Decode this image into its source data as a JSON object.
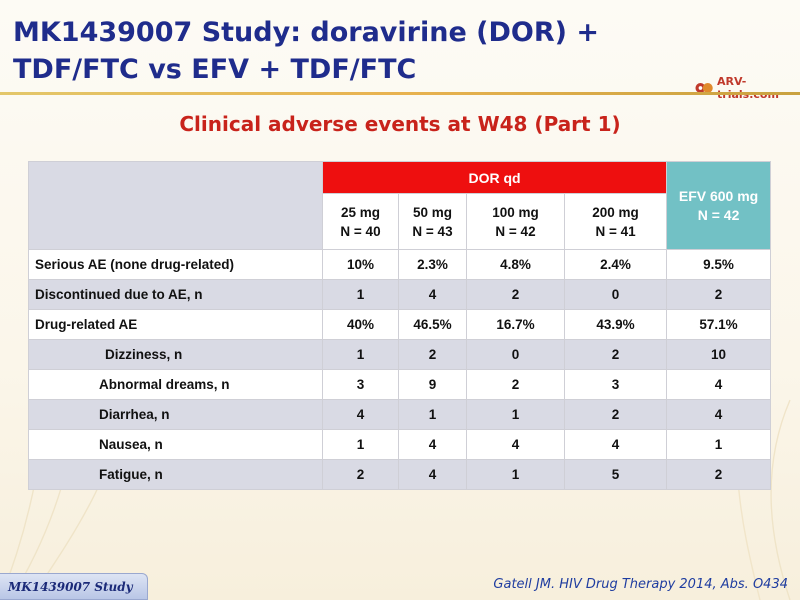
{
  "slide": {
    "title": "MK1439007 Study: doravirine (DOR) + TDF/FTC vs EFV + TDF/FTC",
    "logo_text": "ARV-trials.com",
    "subtitle": "Clinical adverse events at W48 (Part 1)",
    "footer_tab": "MK1439007 Study",
    "citation": "Gatell JM.  HIV Drug Therapy 2014, Abs. O434"
  },
  "table": {
    "group_header": "DOR qd",
    "efv_header": [
      "EFV 600 mg",
      "N = 42"
    ],
    "dose_headers": [
      [
        "25 mg",
        "N = 40"
      ],
      [
        "50 mg",
        "N = 43"
      ],
      [
        "100 mg",
        "N = 42"
      ],
      [
        "200 mg",
        "N = 41"
      ]
    ],
    "rows": [
      {
        "label": "Serious AE (none drug-related)",
        "values": [
          "10%",
          "2.3%",
          "4.8%",
          "2.4%",
          "9.5%"
        ]
      },
      {
        "label": "Discontinued due to AE, n",
        "values": [
          "1",
          "4",
          "2",
          "0",
          "2"
        ]
      },
      {
        "label": "Drug-related AE",
        "values": [
          "40%",
          "46.5%",
          "16.7%",
          "43.9%",
          "57.1%"
        ]
      },
      {
        "label": "Dizziness, n",
        "values": [
          "1",
          "2",
          "0",
          "2",
          "10"
        ]
      },
      {
        "label": "Abnormal dreams, n",
        "values": [
          "3",
          "9",
          "2",
          "3",
          "4"
        ]
      },
      {
        "label": "Diarrhea, n",
        "values": [
          "4",
          "1",
          "1",
          "2",
          "4"
        ]
      },
      {
        "label": "Nausea, n",
        "values": [
          "1",
          "4",
          "4",
          "4",
          "1"
        ]
      },
      {
        "label": "Fatigue, n",
        "values": [
          "2",
          "4",
          "1",
          "5",
          "2"
        ]
      }
    ]
  },
  "colors": {
    "title": "#1f2c8c",
    "subtitle": "#c8231b",
    "dor_header": "#ee0f0f",
    "efv_header": "#72c1c5",
    "shade_row": "#d9dae4"
  }
}
